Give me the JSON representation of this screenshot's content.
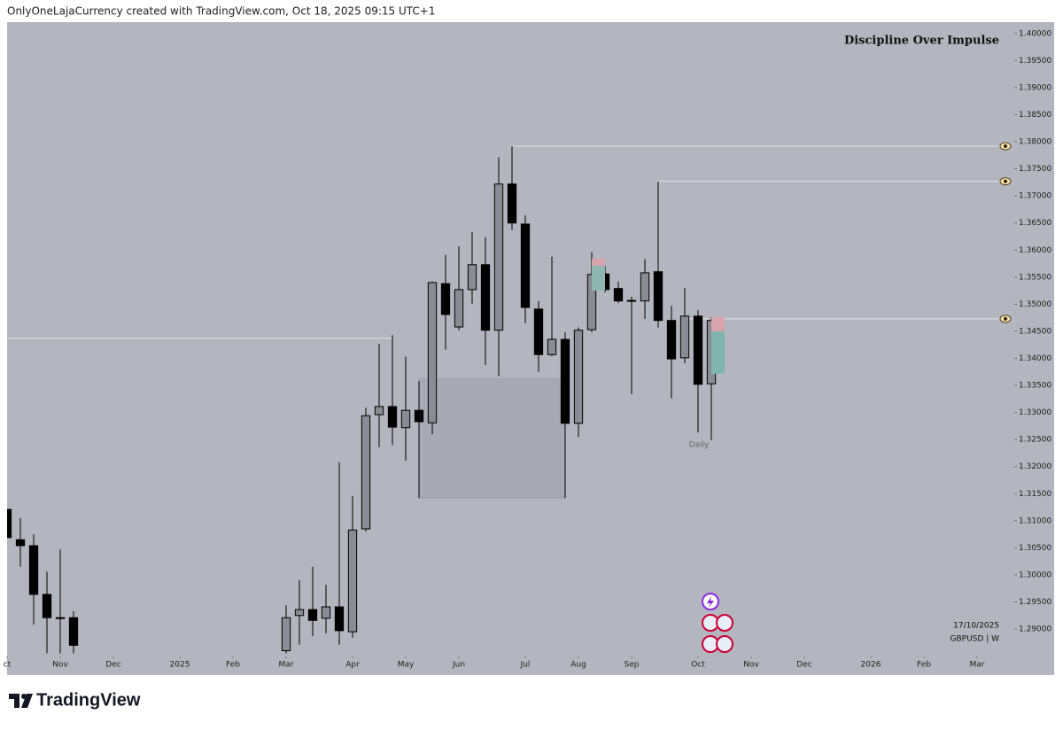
{
  "header": "OnlyOneLajaCurrency created with TradingView.com, Oct 18, 2025 09:15 UTC+1",
  "footer": "TradingView",
  "chart_data": {
    "type": "candlestick",
    "watermark": "Discipline Over Impulse",
    "date_label": "17/10/2025",
    "symbol": "GBPUSD | W",
    "annotation": "Daily",
    "up_color": "#8a8c95",
    "down_color": "#000000",
    "background": "#b3b5bf",
    "xlim": [
      0,
      75.8
    ],
    "ylim": [
      1.2851,
      1.4021
    ],
    "xticks": [
      {
        "value": 0,
        "label": "ct"
      },
      {
        "value": 4,
        "label": "Nov"
      },
      {
        "value": 8,
        "label": "Dec"
      },
      {
        "value": 13,
        "label": "2025"
      },
      {
        "value": 17,
        "label": "Feb"
      },
      {
        "value": 21,
        "label": "Mar"
      },
      {
        "value": 26,
        "label": "Apr"
      },
      {
        "value": 30,
        "label": "May"
      },
      {
        "value": 34,
        "label": "Jun"
      },
      {
        "value": 39,
        "label": "Jul"
      },
      {
        "value": 43,
        "label": "Aug"
      },
      {
        "value": 47,
        "label": "Sep"
      },
      {
        "value": 52,
        "label": "Oct"
      },
      {
        "value": 56,
        "label": "Nov"
      },
      {
        "value": 60,
        "label": "Dec"
      },
      {
        "value": 65,
        "label": "2026"
      },
      {
        "value": 69,
        "label": "Feb"
      },
      {
        "value": 73,
        "label": "Mar"
      }
    ],
    "yticks": [
      {
        "value": 1.29,
        "label": "1.29000"
      },
      {
        "value": 1.295,
        "label": "1.29500"
      },
      {
        "value": 1.3,
        "label": "1.30000"
      },
      {
        "value": 1.305,
        "label": "1.30500"
      },
      {
        "value": 1.31,
        "label": "1.31000"
      },
      {
        "value": 1.315,
        "label": "1.31500"
      },
      {
        "value": 1.32,
        "label": "1.32000"
      },
      {
        "value": 1.325,
        "label": "1.32500"
      },
      {
        "value": 1.33,
        "label": "1.33000"
      },
      {
        "value": 1.335,
        "label": "1.33500"
      },
      {
        "value": 1.34,
        "label": "1.34000"
      },
      {
        "value": 1.345,
        "label": "1.34500"
      },
      {
        "value": 1.35,
        "label": "1.35000"
      },
      {
        "value": 1.355,
        "label": "1.35500"
      },
      {
        "value": 1.36,
        "label": "1.36000"
      },
      {
        "value": 1.365,
        "label": "1.36500"
      },
      {
        "value": 1.37,
        "label": "1.37000"
      },
      {
        "value": 1.375,
        "label": "1.37500"
      },
      {
        "value": 1.38,
        "label": "1.38000"
      },
      {
        "value": 1.385,
        "label": "1.38500"
      },
      {
        "value": 1.39,
        "label": "1.39000"
      },
      {
        "value": 1.395,
        "label": "1.39500"
      },
      {
        "value": 1.4,
        "label": "1.40000"
      }
    ],
    "candles": {
      "x": [
        0,
        1,
        2,
        3,
        4,
        5,
        21,
        22,
        23,
        24,
        25,
        26,
        27,
        28,
        29,
        30,
        31,
        32,
        33,
        34,
        35,
        36,
        37,
        38,
        39,
        40,
        41,
        42,
        43,
        44,
        45,
        46,
        47,
        48,
        49,
        50,
        51,
        52,
        53
      ],
      "open": [
        1.3121,
        1.3065,
        1.3054,
        1.2964,
        1.2921,
        1.2921,
        1.286,
        1.2925,
        1.2936,
        1.292,
        1.2941,
        1.2895,
        1.3085,
        1.3296,
        1.3311,
        1.3272,
        1.3304,
        1.3281,
        1.3538,
        1.3458,
        1.3527,
        1.3573,
        1.3452,
        1.3722,
        1.3648,
        1.3491,
        1.3407,
        1.3435,
        1.328,
        1.3453,
        1.3556,
        1.3529,
        1.3506,
        1.3506,
        1.356,
        1.347,
        1.3401,
        1.3478,
        1.3353
      ],
      "high": [
        1.3121,
        1.3105,
        1.3075,
        1.3006,
        1.3047,
        1.2933,
        1.2944,
        1.299,
        1.3015,
        1.2982,
        1.3208,
        1.3146,
        1.3309,
        1.3427,
        1.3443,
        1.3403,
        1.3358,
        1.3542,
        1.3591,
        1.3607,
        1.3633,
        1.3624,
        1.3771,
        1.3792,
        1.3664,
        1.3506,
        1.3588,
        1.3448,
        1.3457,
        1.3596,
        1.3571,
        1.3542,
        1.3514,
        1.3583,
        1.3727,
        1.3497,
        1.353,
        1.3489,
        1.3476
      ],
      "low": [
        1.3069,
        1.3015,
        1.2908,
        1.2855,
        1.2855,
        1.2855,
        1.2855,
        1.2871,
        1.2887,
        1.2892,
        1.2871,
        1.2884,
        1.308,
        1.3236,
        1.324,
        1.3211,
        1.3142,
        1.326,
        1.3416,
        1.3452,
        1.3501,
        1.3388,
        1.3367,
        1.3637,
        1.3465,
        1.3375,
        1.3404,
        1.3142,
        1.3255,
        1.3448,
        1.3522,
        1.3502,
        1.3334,
        1.3473,
        1.3457,
        1.3326,
        1.3391,
        1.3263,
        1.3249
      ],
      "close": [
        1.3069,
        1.3054,
        1.2964,
        1.2921,
        1.292,
        1.287,
        1.2921,
        1.2936,
        1.2916,
        1.2941,
        1.2897,
        1.3083,
        1.3294,
        1.3311,
        1.3273,
        1.3304,
        1.3283,
        1.354,
        1.3481,
        1.3527,
        1.3573,
        1.3452,
        1.3722,
        1.365,
        1.3494,
        1.3407,
        1.3435,
        1.328,
        1.3452,
        1.3555,
        1.3527,
        1.3506,
        1.3507,
        1.3558,
        1.347,
        1.3399,
        1.3478,
        1.3352,
        1.347
      ]
    },
    "levels": [
      {
        "y": 1.3437,
        "x0": 0,
        "x1": 29,
        "alert": false
      },
      {
        "y": 1.3792,
        "x0": 37.9,
        "x1": 74.8,
        "alert": true
      },
      {
        "y": 1.3727,
        "x0": 48.9,
        "x1": 74.8,
        "alert": true
      },
      {
        "y": 1.3473,
        "x0": 50.8,
        "x1": 74.8,
        "alert": true
      }
    ],
    "zone": {
      "x0": 31,
      "x1": 42,
      "y0": 1.3142,
      "y1": 1.3362
    }
  }
}
